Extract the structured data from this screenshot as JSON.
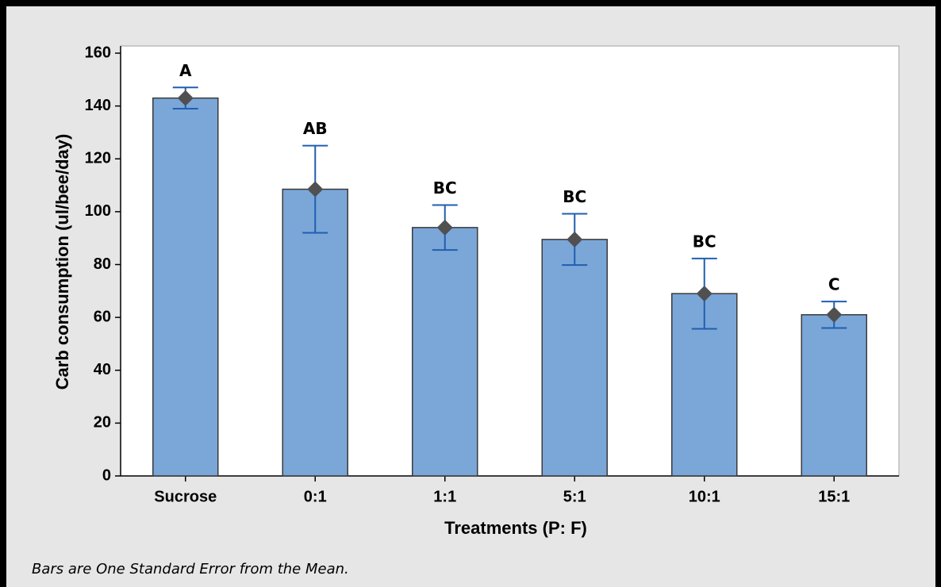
{
  "chart_data": {
    "type": "bar",
    "x_label": "Treatments (P: F)",
    "y_label": "Carb consumption (ul/bee/day)",
    "footnote": "Bars are One Standard Error from the Mean.",
    "categories": [
      "Sucrose",
      "0:1",
      "1:1",
      "5:1",
      "10:1",
      "15:1"
    ],
    "values": [
      143,
      108.5,
      94,
      89.5,
      69,
      61
    ],
    "errors": [
      4,
      16.5,
      8.5,
      9.7,
      13.3,
      5
    ],
    "letters": [
      "A",
      "AB",
      "BC",
      "BC",
      "BC",
      "C"
    ],
    "color": "#7ba6d8",
    "error_color": "#1f5fb0",
    "marker_color": "#505050",
    "ylim": [
      0,
      160
    ],
    "yticks": [
      0,
      20,
      40,
      60,
      80,
      100,
      120,
      140,
      160
    ]
  }
}
